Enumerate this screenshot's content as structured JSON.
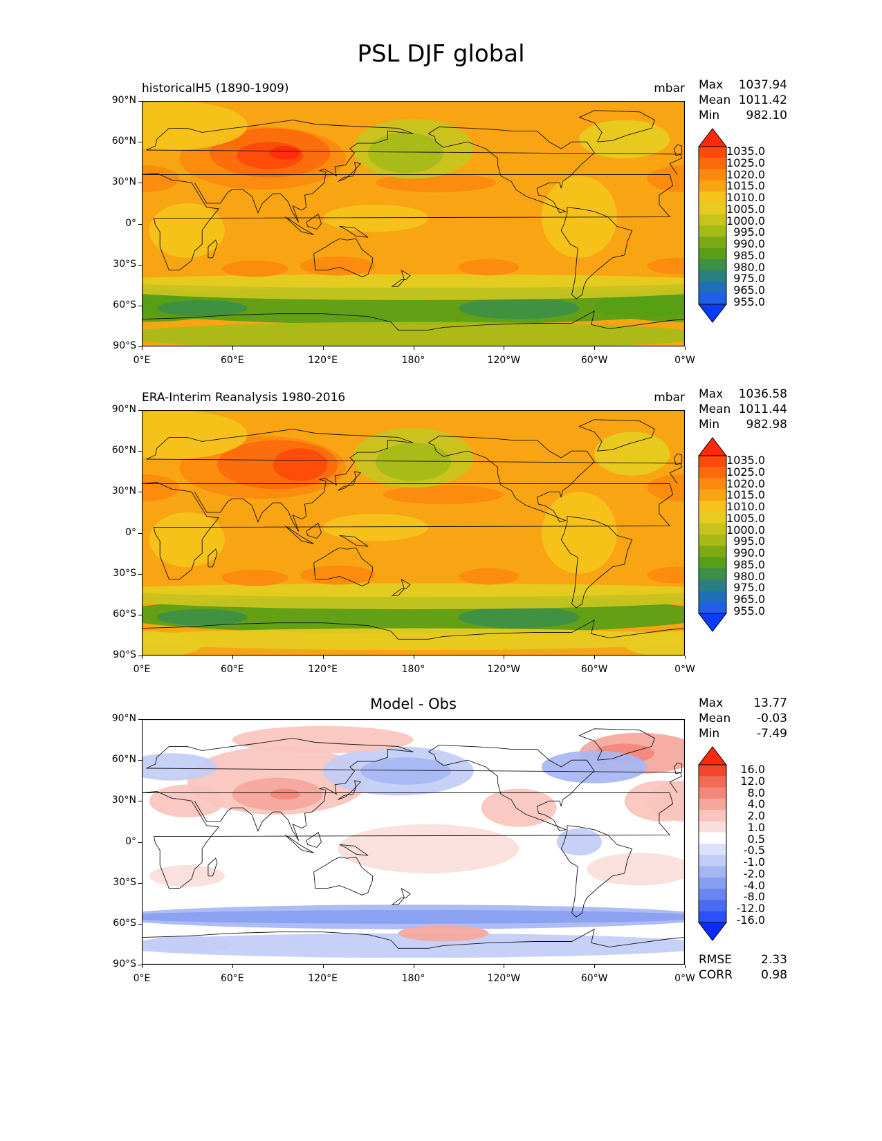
{
  "page_title": "PSL DJF global",
  "panels": [
    {
      "left_title": "historicalH5 (1890-1909)",
      "right_title": "mbar",
      "center_title": "",
      "stats": [
        {
          "label": "Max",
          "value": "1037.94"
        },
        {
          "label": "Mean",
          "value": "1011.42"
        },
        {
          "label": "Min",
          "value": "982.10"
        }
      ],
      "colorbar_labels": [
        "1035.0",
        "1025.0",
        "1020.0",
        "1015.0",
        "1010.0",
        "1005.0",
        "1000.0",
        "995.0",
        "990.0",
        "985.0",
        "980.0",
        "975.0",
        "965.0",
        "955.0"
      ],
      "colorbar_colors": [
        "#ff2a0a",
        "#fe4a0a",
        "#fc6a0c",
        "#fb8a0e",
        "#f9a412",
        "#f5c31a",
        "#e6cc20",
        "#c8c41e",
        "#a6bb18",
        "#7daa14",
        "#569f16",
        "#3d8f47",
        "#2a7f80",
        "#1f6fb8",
        "#1f5fe6",
        "#0a3cff"
      ],
      "footer": []
    },
    {
      "left_title": "ERA-Interim Reanalysis 1980-2016",
      "right_title": "mbar",
      "center_title": "",
      "stats": [
        {
          "label": "Max",
          "value": "1036.58"
        },
        {
          "label": "Mean",
          "value": "1011.44"
        },
        {
          "label": "Min",
          "value": "982.98"
        }
      ],
      "colorbar_labels": [
        "1035.0",
        "1025.0",
        "1020.0",
        "1015.0",
        "1010.0",
        "1005.0",
        "1000.0",
        "995.0",
        "990.0",
        "985.0",
        "980.0",
        "975.0",
        "965.0",
        "955.0"
      ],
      "colorbar_colors": [
        "#ff2a0a",
        "#fe4a0a",
        "#fc6a0c",
        "#fb8a0e",
        "#f9a412",
        "#f5c31a",
        "#e6cc20",
        "#c8c41e",
        "#a6bb18",
        "#7daa14",
        "#569f16",
        "#3d8f47",
        "#2a7f80",
        "#1f6fb8",
        "#1f5fe6",
        "#0a3cff"
      ],
      "footer": []
    },
    {
      "left_title": "",
      "right_title": "",
      "center_title": "Model - Obs",
      "stats": [
        {
          "label": "Max",
          "value": "13.77"
        },
        {
          "label": "Mean",
          "value": "-0.03"
        },
        {
          "label": "Min",
          "value": "-7.49"
        }
      ],
      "colorbar_labels": [
        "16.0",
        "12.0",
        "8.0",
        "4.0",
        "2.0",
        "1.0",
        "0.5",
        "-0.5",
        "-1.0",
        "-2.0",
        "-4.0",
        "-8.0",
        "-12.0",
        "-16.0"
      ],
      "colorbar_colors": [
        "#ff2a0a",
        "#f4462e",
        "#f06a55",
        "#f2877a",
        "#f5a79c",
        "#f8c4bd",
        "#fbdedb",
        "#ffffff",
        "#dde2fb",
        "#c2cdf6",
        "#a6b6f3",
        "#889ef0",
        "#6b86ee",
        "#4a6cf0",
        "#2a50ff",
        "#0a2cff"
      ],
      "footer": [
        {
          "label": "RMSE",
          "value": "2.33"
        },
        {
          "label": "CORR",
          "value": "0.98"
        }
      ]
    }
  ],
  "lat_ticks": [
    "90°N",
    "60°N",
    "30°N",
    "0°",
    "30°S",
    "60°S",
    "90°S"
  ],
  "lon_ticks": [
    "0°E",
    "60°E",
    "120°E",
    "180°",
    "120°W",
    "60°W",
    "0°W"
  ]
}
